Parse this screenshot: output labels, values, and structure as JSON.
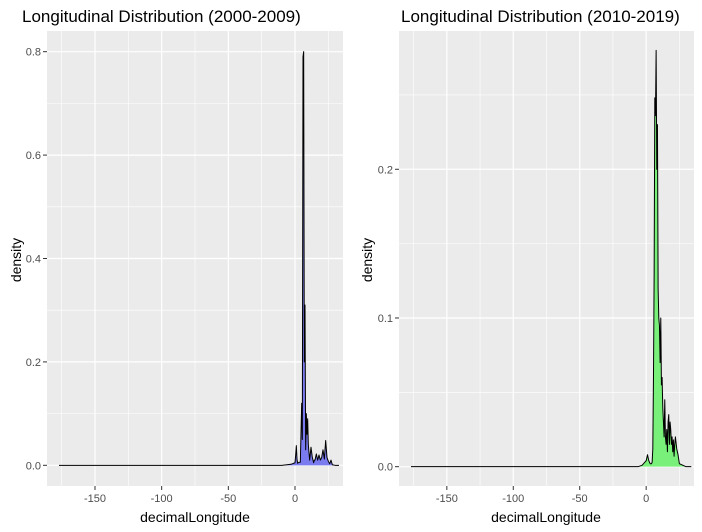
{
  "chart_data": [
    {
      "type": "area",
      "title": "Longitudinal Distribution (2000-2009)",
      "xlabel": "decimalLongitude",
      "ylabel": "density",
      "x_ticks": [
        -150,
        -100,
        -50,
        0
      ],
      "x_tick_labels": [
        "-150",
        "-100",
        "-50",
        "0"
      ],
      "y_ticks": [
        0.0,
        0.2,
        0.4,
        0.6,
        0.8
      ],
      "y_tick_labels": [
        "0.0",
        "0.2",
        "0.4",
        "0.6",
        "0.8"
      ],
      "xlim": [
        -186,
        36
      ],
      "ylim": [
        -0.04,
        0.84
      ],
      "fill_color": "#7b7bf0",
      "background": "#ebebeb",
      "grid": true,
      "series": [
        {
          "x": [
            -177,
            -10,
            -3,
            0,
            0.5,
            1,
            1.5,
            2,
            3,
            4,
            5,
            5.5,
            6,
            6.5,
            7,
            7.5,
            8,
            8.5,
            9,
            9.5,
            10,
            11,
            12,
            13,
            14,
            14.5,
            15,
            16,
            17,
            18,
            19,
            20,
            21,
            22,
            23,
            24,
            25,
            26,
            27,
            28,
            30,
            33
          ],
          "y": [
            0,
            0,
            0.002,
            0.005,
            0.02,
            0.038,
            0.012,
            0.004,
            0.006,
            0.006,
            0.12,
            0.05,
            0.79,
            0.8,
            0.2,
            0.31,
            0.03,
            0.1,
            0.06,
            0.09,
            0.04,
            0.01,
            0.035,
            0.015,
            0.005,
            0.01,
            0.01,
            0.022,
            0.01,
            0.02,
            0.01,
            0.015,
            0.03,
            0.012,
            0.048,
            0.015,
            0.008,
            0.003,
            0.01,
            0.001,
            0,
            0
          ]
        }
      ]
    },
    {
      "type": "area",
      "title": "Longitudinal Distribution (2010-2019)",
      "xlabel": "decimalLongitude",
      "ylabel": "density",
      "x_ticks": [
        -150,
        -100,
        -50,
        0
      ],
      "x_tick_labels": [
        "-150",
        "-100",
        "-50",
        "0"
      ],
      "y_ticks": [
        0.0,
        0.1,
        0.2
      ],
      "y_tick_labels": [
        "0.0",
        "0.1",
        "0.2"
      ],
      "xlim": [
        -186,
        36
      ],
      "ylim": [
        -0.013,
        0.293
      ],
      "fill_color": "#79f07a",
      "background": "#ebebeb",
      "grid": true,
      "series": [
        {
          "x": [
            -177,
            -6,
            -3,
            0,
            1,
            2,
            3,
            4,
            4.5,
            5,
            5.5,
            6,
            6.5,
            7,
            7.5,
            8,
            8.5,
            9,
            9.5,
            10,
            10.5,
            11,
            11.5,
            12,
            12.5,
            13,
            13.5,
            14,
            14.5,
            15,
            15.5,
            16,
            16.5,
            17,
            17.5,
            18,
            18.5,
            19,
            19.5,
            20,
            20.5,
            21,
            21.5,
            22,
            23,
            24,
            25,
            30,
            34
          ],
          "y": [
            0,
            0,
            0.001,
            0.004,
            0.008,
            0.004,
            0.002,
            0.002,
            0.003,
            0.012,
            0.06,
            0.13,
            0.248,
            0.236,
            0.28,
            0.2,
            0.23,
            0.12,
            0.1,
            0.095,
            0.07,
            0.1,
            0.055,
            0.06,
            0.04,
            0.03,
            0.02,
            0.045,
            0.02,
            0.015,
            0.025,
            0.01,
            0.03,
            0.035,
            0.015,
            0.03,
            0.025,
            0.015,
            0.02,
            0.01,
            0.018,
            0.007,
            0.015,
            0.02,
            0.012,
            0.008,
            0.002,
            0,
            0
          ]
        }
      ]
    }
  ]
}
